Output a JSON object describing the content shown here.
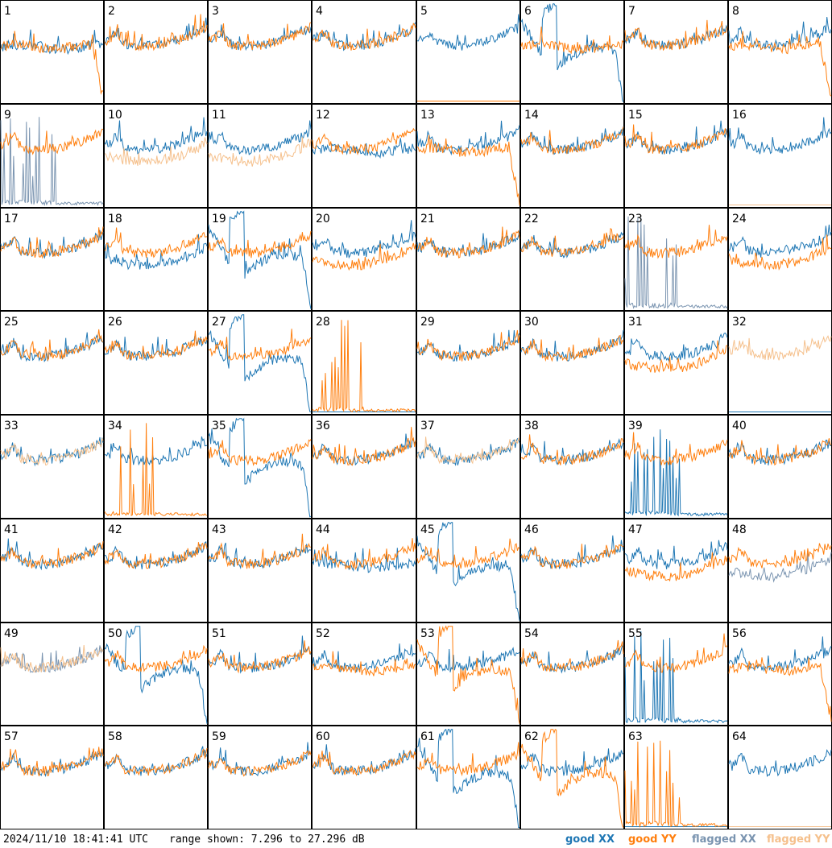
{
  "footer": {
    "timestamp": "2024/11/10 18:41:41 UTC",
    "range_text": "range shown: 7.296 to 27.296 dB"
  },
  "legend": {
    "good_xx": "good XX",
    "good_yy": "good YY",
    "flagged_xx": "flagged XX",
    "flagged_yy": "flagged YY"
  },
  "colors": {
    "good_xx": "#1f77b4",
    "good_yy": "#ff7f0e",
    "flagged_xx": "#7a94b0",
    "flagged_yy": "#f5c08c",
    "frame": "#000000"
  },
  "chart_data": {
    "type": "line",
    "layout": "8x8 grid of small multiples, one per tile",
    "ylim": [
      7.296,
      27.296
    ],
    "yunit": "dB",
    "tiles": [
      {
        "label": "1",
        "xx": "good",
        "yy": "good",
        "xx_shape": "flat",
        "yy_shape": "rolloff"
      },
      {
        "label": "2",
        "xx": "good",
        "yy": "good"
      },
      {
        "label": "3",
        "xx": "good",
        "yy": "good"
      },
      {
        "label": "4",
        "xx": "good",
        "yy": "good"
      },
      {
        "label": "5",
        "xx": "good",
        "yy": "good",
        "yy_shape": "dead"
      },
      {
        "label": "6",
        "xx": "good",
        "yy": "good",
        "xx_shape": "dip",
        "yy_shape": "flat"
      },
      {
        "label": "7",
        "xx": "good",
        "yy": "good"
      },
      {
        "label": "8",
        "xx": "good",
        "yy": "good",
        "yy_shape": "rolloff"
      },
      {
        "label": "9",
        "xx": "flagged",
        "yy": "good",
        "xx_shape": "spiky"
      },
      {
        "label": "10",
        "xx": "good",
        "yy": "flagged",
        "yy_shape": "lower"
      },
      {
        "label": "11",
        "xx": "good",
        "yy": "flagged",
        "yy_shape": "lower"
      },
      {
        "label": "12",
        "xx": "good",
        "yy": "good",
        "xx_shape": "flat"
      },
      {
        "label": "13",
        "xx": "good",
        "yy": "good",
        "yy_shape": "rolloff"
      },
      {
        "label": "14",
        "xx": "good",
        "yy": "good"
      },
      {
        "label": "15",
        "xx": "good",
        "yy": "good"
      },
      {
        "label": "16",
        "xx": "good",
        "yy": "flagged",
        "yy_shape": "dead"
      },
      {
        "label": "17",
        "xx": "good",
        "yy": "good"
      },
      {
        "label": "18",
        "xx": "good",
        "yy": "good",
        "xx_shape": "lower"
      },
      {
        "label": "19",
        "xx": "good",
        "yy": "good",
        "xx_shape": "dip"
      },
      {
        "label": "20",
        "xx": "good",
        "yy": "good",
        "yy_shape": "lower"
      },
      {
        "label": "21",
        "xx": "good",
        "yy": "good"
      },
      {
        "label": "22",
        "xx": "good",
        "yy": "good"
      },
      {
        "label": "23",
        "xx": "flagged",
        "yy": "good",
        "xx_shape": "spiky"
      },
      {
        "label": "24",
        "xx": "good",
        "yy": "good",
        "yy_shape": "lower"
      },
      {
        "label": "25",
        "xx": "good",
        "yy": "good"
      },
      {
        "label": "26",
        "xx": "good",
        "yy": "good"
      },
      {
        "label": "27",
        "xx": "good",
        "yy": "good",
        "xx_shape": "dip"
      },
      {
        "label": "28",
        "xx": "good",
        "yy": "good",
        "xx_shape": "dead",
        "yy_shape": "spiky"
      },
      {
        "label": "29",
        "xx": "good",
        "yy": "good"
      },
      {
        "label": "30",
        "xx": "good",
        "yy": "good"
      },
      {
        "label": "31",
        "xx": "good",
        "yy": "good",
        "yy_shape": "lower"
      },
      {
        "label": "32",
        "xx": "good",
        "yy": "flagged",
        "xx_shape": "dead"
      },
      {
        "label": "33",
        "xx": "good",
        "yy": "flagged"
      },
      {
        "label": "34",
        "xx": "good",
        "yy": "good",
        "yy_shape": "spiky"
      },
      {
        "label": "35",
        "xx": "good",
        "yy": "good",
        "xx_shape": "dip"
      },
      {
        "label": "36",
        "xx": "good",
        "yy": "good"
      },
      {
        "label": "37",
        "xx": "good",
        "yy": "flagged"
      },
      {
        "label": "38",
        "xx": "good",
        "yy": "good"
      },
      {
        "label": "39",
        "xx": "good",
        "yy": "good",
        "xx_shape": "spiky"
      },
      {
        "label": "40",
        "xx": "good",
        "yy": "good"
      },
      {
        "label": "41",
        "xx": "good",
        "yy": "good"
      },
      {
        "label": "42",
        "xx": "good",
        "yy": "good"
      },
      {
        "label": "43",
        "xx": "good",
        "yy": "good"
      },
      {
        "label": "44",
        "xx": "good",
        "yy": "good",
        "xx_shape": "flat"
      },
      {
        "label": "45",
        "xx": "good",
        "yy": "good",
        "xx_shape": "dip"
      },
      {
        "label": "46",
        "xx": "good",
        "yy": "good"
      },
      {
        "label": "47",
        "xx": "good",
        "yy": "good",
        "yy_shape": "lower"
      },
      {
        "label": "48",
        "xx": "flagged",
        "yy": "good",
        "xx_shape": "lower"
      },
      {
        "label": "49",
        "xx": "flagged",
        "yy": "flagged"
      },
      {
        "label": "50",
        "xx": "good",
        "yy": "good",
        "xx_shape": "dip"
      },
      {
        "label": "51",
        "xx": "good",
        "yy": "good"
      },
      {
        "label": "52",
        "xx": "good",
        "yy": "good",
        "yy_shape": "flat"
      },
      {
        "label": "53",
        "xx": "good",
        "yy": "good",
        "yy_shape": "dip"
      },
      {
        "label": "54",
        "xx": "good",
        "yy": "good"
      },
      {
        "label": "55",
        "xx": "good",
        "yy": "good",
        "xx_shape": "spiky"
      },
      {
        "label": "56",
        "xx": "good",
        "yy": "good",
        "yy_shape": "rolloff"
      },
      {
        "label": "57",
        "xx": "good",
        "yy": "good"
      },
      {
        "label": "58",
        "xx": "good",
        "yy": "good"
      },
      {
        "label": "59",
        "xx": "good",
        "yy": "good"
      },
      {
        "label": "60",
        "xx": "good",
        "yy": "good"
      },
      {
        "label": "61",
        "xx": "good",
        "yy": "good",
        "xx_shape": "dip"
      },
      {
        "label": "62",
        "xx": "good",
        "yy": "good",
        "yy_shape": "dip"
      },
      {
        "label": "63",
        "xx": "good",
        "yy": "good",
        "xx_shape": "dead",
        "yy_shape": "spiky"
      },
      {
        "label": "64",
        "xx": "good",
        "yy": "flagged",
        "yy_shape": "dead"
      }
    ]
  }
}
